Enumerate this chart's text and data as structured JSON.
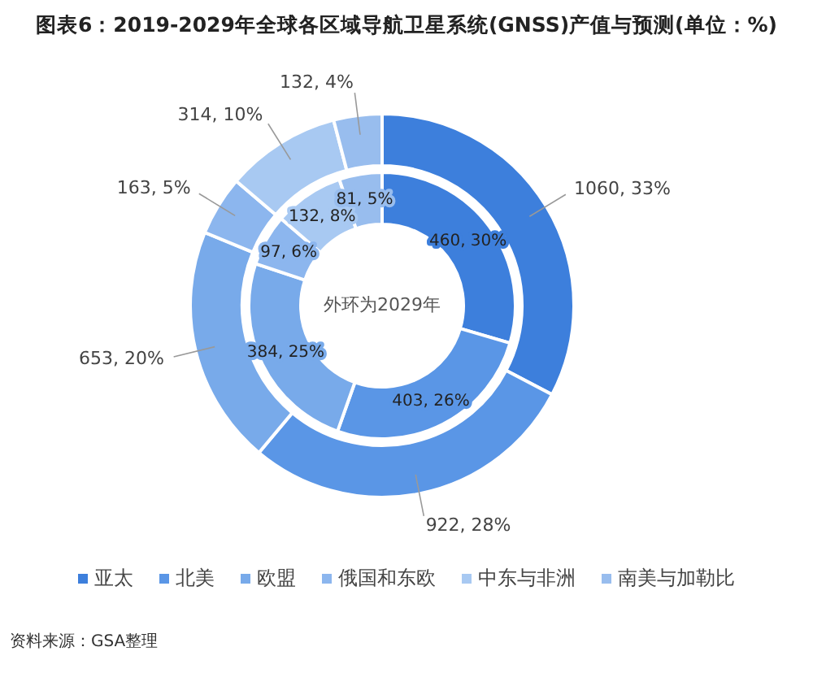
{
  "chart_data": {
    "type": "donut",
    "title": "图表6：2019-2029年全球各区域导航卫星系统(GNSS)产值与预测(单位：%)",
    "categories": [
      "亚太",
      "北美",
      "欧盟",
      "俄国和东欧",
      "中东与非洲",
      "南美与加勒比"
    ],
    "colors": [
      "#3d7fdc",
      "#5a96e6",
      "#78aaea",
      "#8cb6ee",
      "#a8c9f2",
      "#98bdee"
    ],
    "series": [
      {
        "values": [
          460,
          403,
          384,
          97,
          132,
          81
        ],
        "value_labels": [
          "460, 30%",
          "403, 26%",
          "384, 25%",
          "97, 6%",
          "132, 8%",
          "81, 5%"
        ]
      },
      {
        "values": [
          1060,
          922,
          653,
          163,
          314,
          132
        ],
        "value_labels": [
          "1060, 33%",
          "922, 28%",
          "653, 20%",
          "163, 5%",
          "314, 10%",
          "132, 4%"
        ]
      }
    ],
    "legend": "bottom",
    "annotations": [
      "外环为2029年",
      "资料来源：GSA整理"
    ]
  }
}
